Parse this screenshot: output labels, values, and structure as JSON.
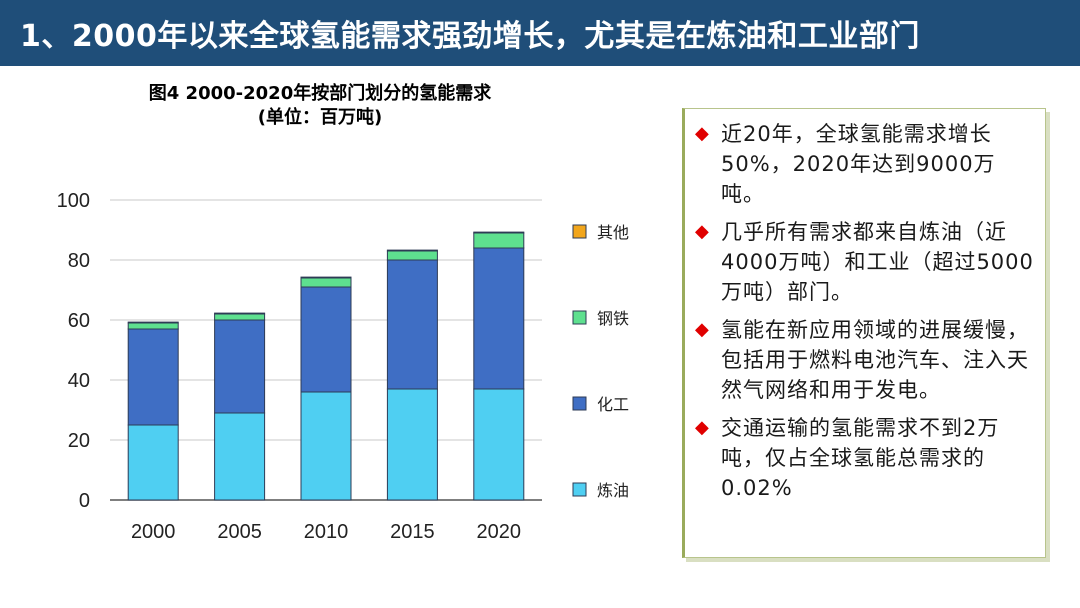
{
  "header": {
    "title": "1、2000年以来全球氢能需求强劲增长，尤其是在炼油和工业部门"
  },
  "chart_data": {
    "type": "bar",
    "stacked": true,
    "title": "图4 2000-2020年按部门划分的氢能需求",
    "subtitle": "(单位：百万吨)",
    "categories": [
      "2000",
      "2005",
      "2010",
      "2015",
      "2020"
    ],
    "series": [
      {
        "name": "炼油",
        "color": "#4fcff2",
        "values": [
          25,
          29,
          36,
          37,
          37
        ]
      },
      {
        "name": "化工",
        "color": "#3f6ec4",
        "values": [
          32,
          31,
          35,
          43,
          47
        ]
      },
      {
        "name": "钢铁",
        "color": "#5ee08f",
        "values": [
          2,
          2,
          3,
          3,
          5
        ]
      },
      {
        "name": "其他",
        "color": "#f2a61c",
        "values": [
          0.3,
          0.3,
          0.3,
          0.3,
          0.3
        ]
      }
    ],
    "legend_order": [
      "其他",
      "钢铁",
      "化工",
      "炼油"
    ],
    "yticks": [
      "0",
      "20",
      "40",
      "60",
      "80",
      "100"
    ],
    "ylim": [
      0,
      100
    ],
    "grid": true,
    "legend_position": "right"
  },
  "panel": {
    "bullets": [
      "近20年，全球氢能需求增长50%，2020年达到9000万吨。",
      "几乎所有需求都来自炼油（近4000万吨）和工业（超过5000万吨）部门。",
      "氢能在新应用领域的进展缓慢，包括用于燃料电池汽车、注入天然气网络和用于发电。",
      "交通运输的氢能需求不到2万吨，仅占全球氢能总需求的0.02%"
    ]
  }
}
